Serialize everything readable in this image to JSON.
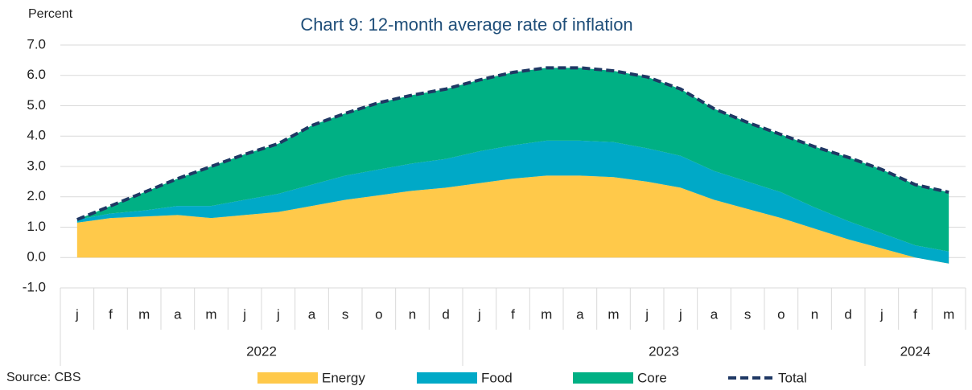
{
  "chart_data": {
    "type": "stacked_area",
    "title": "Chart 9: 12-month average rate of inflation",
    "y_label": "Percent",
    "source": "Source: CBS",
    "categories": [
      "j",
      "f",
      "m",
      "a",
      "m",
      "j",
      "j",
      "a",
      "s",
      "o",
      "n",
      "d",
      "j",
      "f",
      "m",
      "a",
      "m",
      "j",
      "j",
      "a",
      "s",
      "o",
      "n",
      "d",
      "j",
      "f",
      "m"
    ],
    "groups": [
      {
        "label": "2022",
        "count": 12
      },
      {
        "label": "2023",
        "count": 12
      },
      {
        "label": "2024",
        "count": 3
      }
    ],
    "series": [
      {
        "name": "Energy",
        "color": "#ffc94a",
        "values": [
          1.15,
          1.3,
          1.35,
          1.4,
          1.3,
          1.4,
          1.5,
          1.7,
          1.9,
          2.05,
          2.2,
          2.3,
          2.45,
          2.6,
          2.7,
          2.7,
          2.65,
          2.5,
          2.3,
          1.9,
          1.6,
          1.3,
          0.95,
          0.6,
          0.3,
          0.0,
          -0.2
        ]
      },
      {
        "name": "Food",
        "color": "#00a9c7",
        "values": [
          0.1,
          0.15,
          0.2,
          0.3,
          0.4,
          0.5,
          0.6,
          0.7,
          0.8,
          0.85,
          0.9,
          0.95,
          1.05,
          1.1,
          1.15,
          1.15,
          1.15,
          1.1,
          1.05,
          0.95,
          0.9,
          0.85,
          0.7,
          0.6,
          0.5,
          0.4,
          0.4
        ]
      },
      {
        "name": "Core",
        "color": "#00b084",
        "values": [
          0.0,
          0.25,
          0.6,
          0.9,
          1.3,
          1.5,
          1.65,
          1.95,
          2.05,
          2.2,
          2.25,
          2.3,
          2.35,
          2.4,
          2.4,
          2.4,
          2.35,
          2.35,
          2.2,
          2.05,
          1.95,
          1.9,
          2.0,
          2.1,
          2.1,
          2.0,
          1.95
        ]
      }
    ],
    "total": {
      "name": "Total",
      "color": "#1f3864",
      "values": [
        1.25,
        1.7,
        2.15,
        2.6,
        3.0,
        3.4,
        3.75,
        4.35,
        4.75,
        5.1,
        5.35,
        5.55,
        5.85,
        6.1,
        6.25,
        6.25,
        6.15,
        5.95,
        5.55,
        4.9,
        4.45,
        4.05,
        3.65,
        3.3,
        2.9,
        2.4,
        2.15
      ]
    },
    "ylim": [
      -1.0,
      7.0
    ],
    "yticks": [
      {
        "value": -1,
        "label": "-1.0"
      },
      {
        "value": 0,
        "label": "0.0"
      },
      {
        "value": 1,
        "label": "1.0"
      },
      {
        "value": 2,
        "label": "2.0"
      },
      {
        "value": 3,
        "label": "3.0"
      },
      {
        "value": 4,
        "label": "4.0"
      },
      {
        "value": 5,
        "label": "5.0"
      },
      {
        "value": 6,
        "label": "6.0"
      },
      {
        "value": 7,
        "label": "7.0"
      }
    ],
    "grid": true
  }
}
